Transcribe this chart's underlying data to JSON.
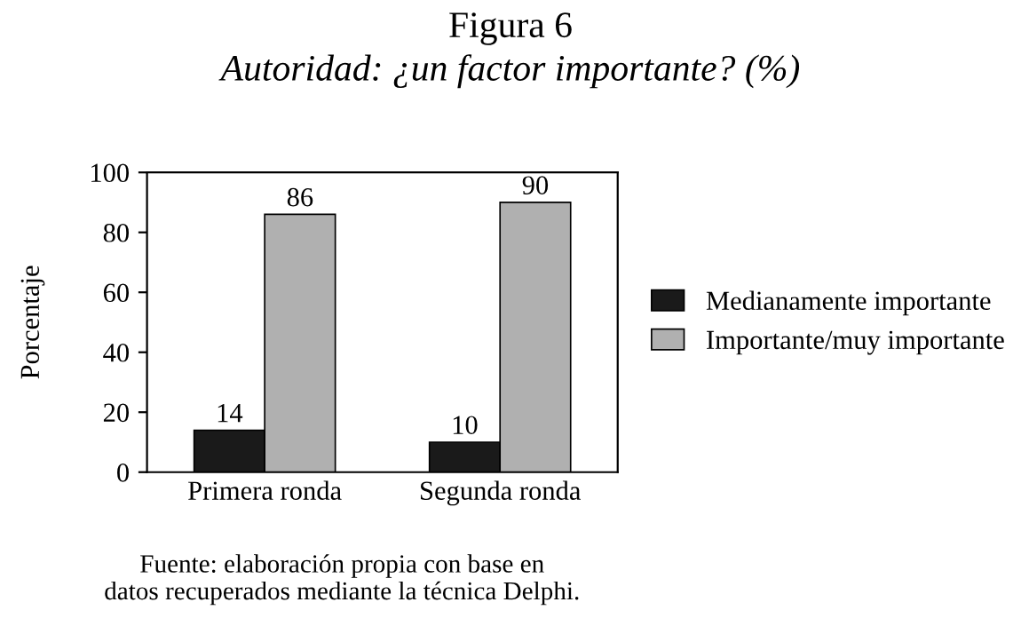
{
  "chart_data": {
    "type": "bar",
    "title": "Figura 6",
    "subtitle": "Autoridad: ¿un factor importante? (%)",
    "ylabel": "Porcentaje",
    "categories": [
      "Primera ronda",
      "Segunda ronda"
    ],
    "series": [
      {
        "name": "Medianamente importante",
        "color": "#1a1a1a",
        "values": [
          14,
          10
        ]
      },
      {
        "name": "Importante/muy importante",
        "color": "#b0b0b0",
        "values": [
          86,
          90
        ]
      }
    ],
    "ylim": [
      0,
      100
    ],
    "yticks": [
      0,
      20,
      40,
      60,
      80,
      100
    ],
    "data_labels": true,
    "grid": false,
    "legend": "right",
    "annotations": [
      "Fuente: elaboración propia con base en\ndatos recuperados mediante la técnica Delphi."
    ]
  }
}
